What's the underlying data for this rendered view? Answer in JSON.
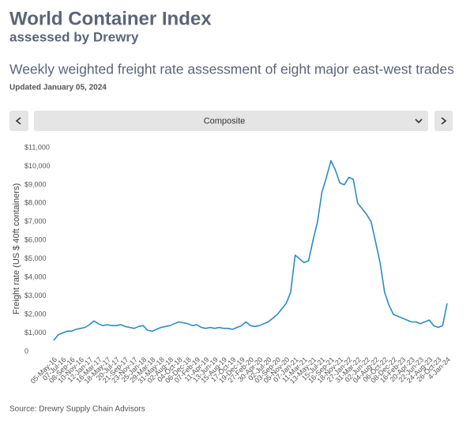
{
  "title": "World Container Index",
  "subtitle": "assessed by Drewry",
  "description": "Weekly weighted freight rate assessment of eight major east-west trades",
  "updated": "Updated January 05, 2024",
  "selector": {
    "label": "Composite"
  },
  "source": "Source: Drewry Supply Chain Advisors",
  "chart_data": {
    "type": "line",
    "ylabel": "Freight rate (US $ 40ft containers)",
    "color": "#2b8cc4",
    "grid": false,
    "ylim": [
      0,
      11000
    ],
    "yticks": [
      0,
      {
        "value": 1000,
        "label": "$1,000"
      },
      {
        "value": 2000,
        "label": "$2,000"
      },
      {
        "value": 3000,
        "label": "$3,000"
      },
      {
        "value": 4000,
        "label": "$4,000"
      },
      {
        "value": 5000,
        "label": "$5,000"
      },
      {
        "value": 6000,
        "label": "$6,000"
      },
      {
        "value": 7000,
        "label": "$7,000"
      },
      {
        "value": 8000,
        "label": "$8,000"
      },
      {
        "value": 9000,
        "label": "$9,000"
      },
      {
        "value": 10000,
        "label": "$10,000"
      },
      {
        "value": 11000,
        "label": "$11,000"
      }
    ],
    "categories": [
      "05-May-16",
      null,
      "07-Jul-16",
      null,
      "08-Sep-16",
      null,
      "10-Nov-16",
      null,
      "12-Jan-17",
      null,
      "16-Mar-17",
      null,
      "18-May-17",
      null,
      "20-Jul-17",
      null,
      "21-Sep-17",
      null,
      "23-Nov-17",
      null,
      "25-Jan-18",
      null,
      "29-Mar-18",
      null,
      "31-May-18",
      null,
      "02-Aug-18",
      null,
      "04-Oct-18",
      null,
      "06-Dec-18",
      null,
      "07-Feb-19",
      null,
      "11-Apr-19",
      null,
      "13-Jun-19",
      null,
      "15-Aug-19",
      null,
      "17-Oct-19",
      null,
      "19-Dec-19",
      null,
      "27-Feb-20",
      null,
      "30-Apr-20",
      null,
      "02-Jul-20",
      null,
      "03-Sep-20",
      null,
      "05-Nov-20",
      null,
      "07-Jan-21",
      null,
      "11-Mar-21",
      null,
      "13-May-21",
      null,
      "15-Jul-21",
      null,
      "16-Sep-21",
      null,
      "18-Nov-21",
      null,
      "27-Jan-22",
      null,
      "31-Mar-22",
      null,
      "02-Jun-22",
      null,
      "04-Aug-22",
      null,
      "06-Oct-22",
      null,
      "08-Dec-22",
      null,
      "16-Feb-23",
      null,
      "20-Apr-23",
      null,
      "22-Jun-23",
      null,
      "24-Aug-23",
      null,
      "26-Oct-23",
      null,
      "4-Jan-24"
    ],
    "values": [
      600,
      900,
      1000,
      1100,
      1100,
      1200,
      1250,
      1300,
      1450,
      1650,
      1500,
      1400,
      1450,
      1400,
      1400,
      1450,
      1350,
      1300,
      1250,
      1350,
      1400,
      1150,
      1100,
      1200,
      1300,
      1350,
      1400,
      1500,
      1600,
      1550,
      1500,
      1400,
      1450,
      1300,
      1250,
      1300,
      1250,
      1300,
      1250,
      1250,
      1200,
      1300,
      1400,
      1600,
      1400,
      1350,
      1400,
      1500,
      1600,
      1800,
      2000,
      2300,
      2600,
      3200,
      5200,
      5000,
      4800,
      4900,
      6000,
      7000,
      8600,
      9400,
      10300,
      9800,
      9100,
      9000,
      9400,
      9300,
      8000,
      7700,
      7400,
      7000,
      5900,
      4800,
      3200,
      2500,
      2000,
      1900,
      1800,
      1700,
      1600,
      1600,
      1500,
      1600,
      1700,
      1400,
      1300,
      1400,
      2600
    ]
  }
}
